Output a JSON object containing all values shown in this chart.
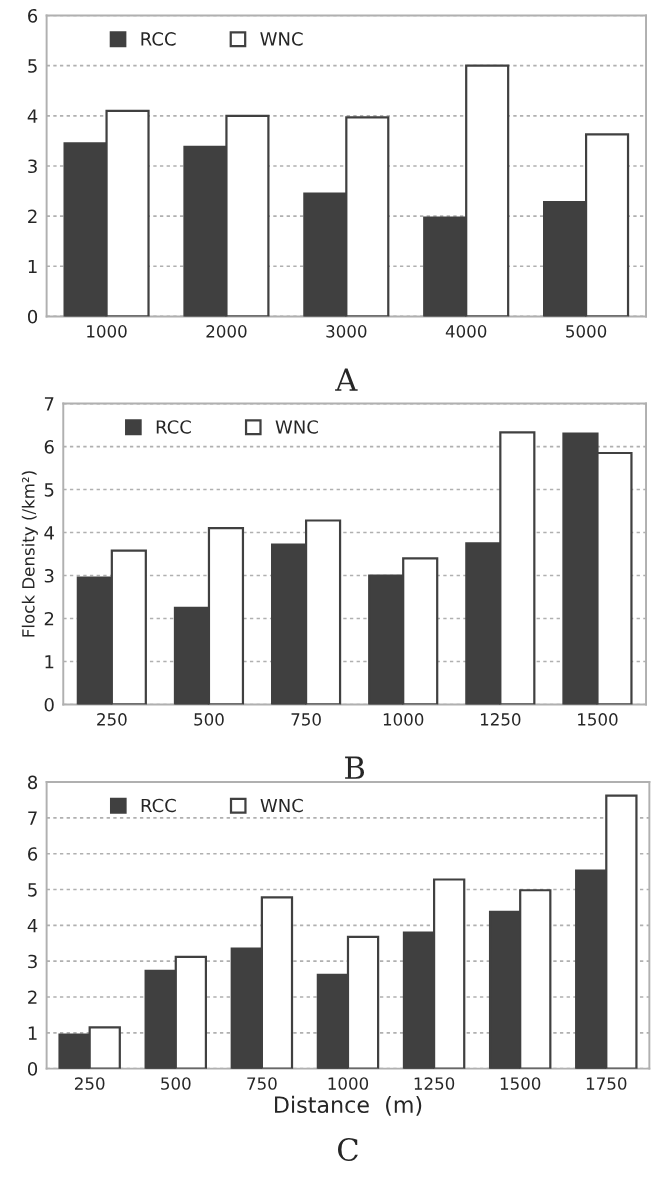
{
  "chart_data": [
    {
      "type": "bar",
      "categories": [
        "1000",
        "2000",
        "3000",
        "4000",
        "5000"
      ],
      "ylim": [
        0,
        6
      ],
      "yticks": [
        0,
        1,
        2,
        3,
        4,
        5,
        6
      ],
      "grid": "y",
      "legend": "top left",
      "annotations": [
        "A"
      ],
      "series": [
        {
          "name": "RCC",
          "color": "#404040",
          "values": [
            3.45,
            3.38,
            2.45,
            1.97,
            2.28
          ]
        },
        {
          "name": "WNC",
          "color": "#ffffff",
          "values": [
            4.1,
            4.0,
            3.97,
            5.0,
            3.63
          ]
        }
      ]
    },
    {
      "type": "bar",
      "categories": [
        "250",
        "500",
        "750",
        "1000",
        "1250",
        "1500"
      ],
      "ylabel": "Flock Density (/km²)",
      "ylim": [
        0,
        7
      ],
      "yticks": [
        0,
        1,
        2,
        3,
        4,
        5,
        6,
        7
      ],
      "grid": "y",
      "legend": "top left",
      "annotations": [
        "B"
      ],
      "series": [
        {
          "name": "RCC",
          "color": "#404040",
          "values": [
            2.95,
            2.25,
            3.72,
            3.0,
            3.75,
            6.3
          ]
        },
        {
          "name": "WNC",
          "color": "#ffffff",
          "values": [
            3.58,
            4.1,
            4.28,
            3.4,
            6.33,
            5.85
          ]
        }
      ]
    },
    {
      "type": "bar",
      "categories": [
        "250",
        "500",
        "750",
        "1000",
        "1250",
        "1500",
        "1750"
      ],
      "xlabel": "Distance  (m)",
      "ylim": [
        0,
        8
      ],
      "yticks": [
        0,
        1,
        2,
        3,
        4,
        5,
        6,
        7,
        8
      ],
      "grid": "y",
      "legend": "top left",
      "annotations": [
        "C"
      ],
      "series": [
        {
          "name": "RCC",
          "color": "#404040",
          "values": [
            0.95,
            2.73,
            3.35,
            2.62,
            3.8,
            4.38,
            5.53
          ]
        },
        {
          "name": "WNC",
          "color": "#ffffff",
          "values": [
            1.15,
            3.12,
            4.78,
            3.68,
            5.28,
            4.98,
            7.62
          ]
        }
      ]
    }
  ]
}
